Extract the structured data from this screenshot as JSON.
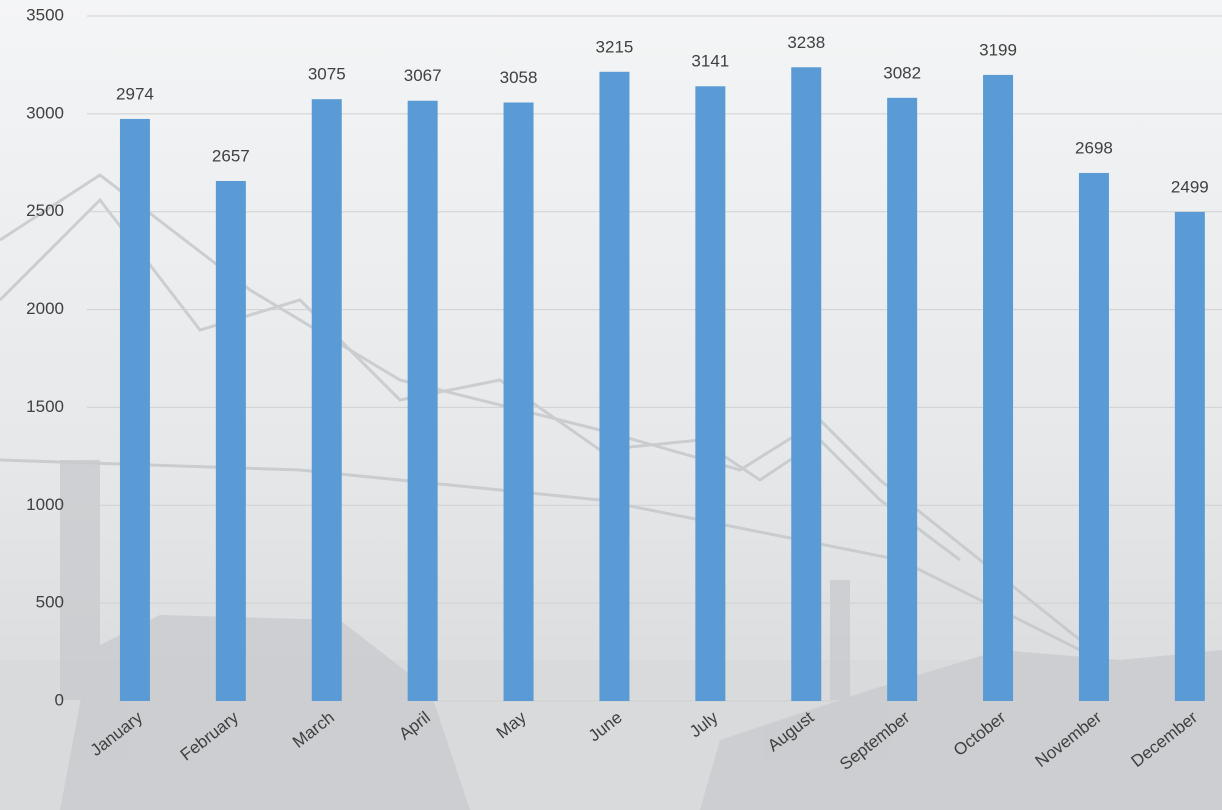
{
  "chart_data": {
    "type": "bar",
    "categories": [
      "January",
      "February",
      "March",
      "April",
      "May",
      "June",
      "July",
      "August",
      "September",
      "October",
      "November",
      "December"
    ],
    "values": [
      2974,
      2657,
      3075,
      3067,
      3058,
      3215,
      3141,
      3238,
      3082,
      3199,
      2698,
      2499
    ],
    "color": "#5b9bd5",
    "ylim": [
      0,
      3500
    ],
    "yticks": [
      0,
      500,
      1000,
      1500,
      2000,
      2500,
      3000,
      3500
    ],
    "grid": true
  }
}
